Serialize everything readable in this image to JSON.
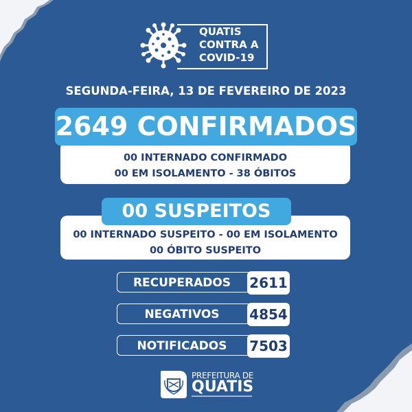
{
  "logo": {
    "lines": [
      "QUATIS",
      "CONTRA A",
      "COVID-19"
    ],
    "icon": "virus-icon"
  },
  "date": "SEGUNDA-FEIRA, 13 DE FEVEREIRO DE 2023",
  "confirmed": {
    "title": "2649 CONFIRMADOS",
    "line1": "00 INTERNADO CONFIRMADO",
    "line2": "00 EM ISOLAMENTO - 38 ÓBITOS"
  },
  "suspected": {
    "title": "00 SUSPEITOS",
    "line1": "00 INTERNADO SUSPEITO - 00 EM ISOLAMENTO",
    "line2": "00 ÓBITO SUSPEITO"
  },
  "stats": [
    {
      "label": "RECUPERADOS",
      "value": "2611"
    },
    {
      "label": "NEGATIVOS",
      "value": "4854"
    },
    {
      "label": "NOTIFICADOS",
      "value": "7503"
    }
  ],
  "footer": {
    "line1": "PREFEITURA DE",
    "line2": "QUATIS"
  },
  "colors": {
    "background": "#2c5a94",
    "accent": "#41a8e0",
    "text_dark": "#1f3d73"
  }
}
